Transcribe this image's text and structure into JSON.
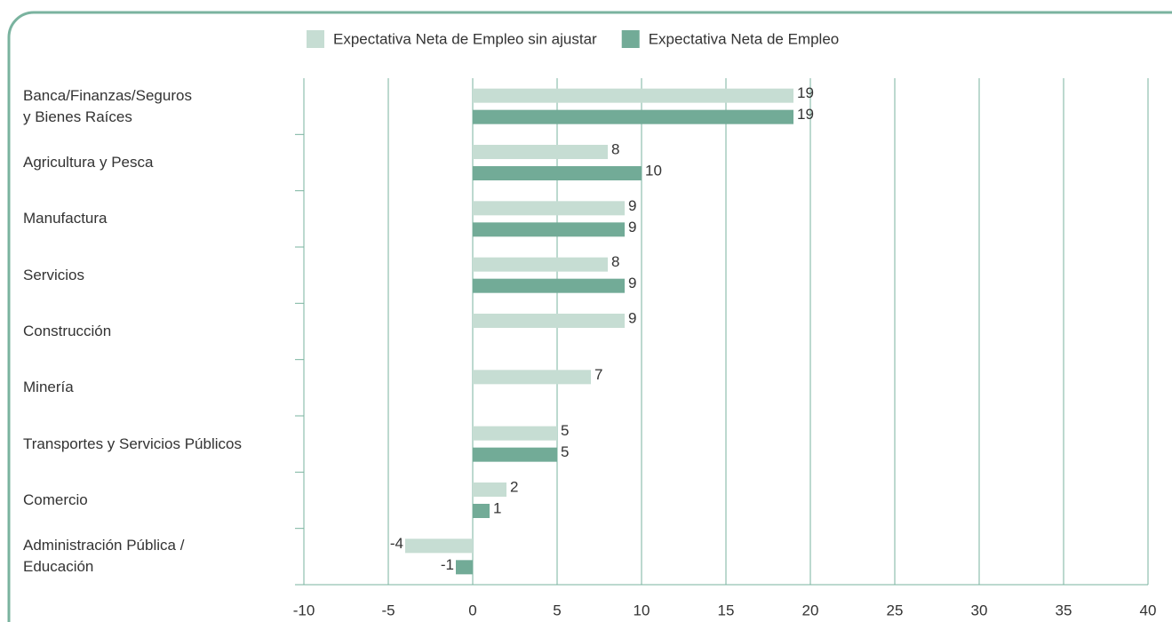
{
  "chart_data": {
    "type": "hbar",
    "categories": [
      "Banca/Finanzas/Seguros\ny Bienes Raíces",
      "Agricultura y Pesca",
      "Manufactura",
      "Servicios",
      "Construcción",
      "Minería",
      "Transportes y Servicios Públicos",
      "Comercio",
      "Administración Pública /\nEducación"
    ],
    "series": [
      {
        "name": "Expectativa Neta de Empleo sin ajustar",
        "color": "#c6ddd3",
        "values": [
          19,
          8,
          9,
          8,
          9,
          7,
          5,
          2,
          -4
        ]
      },
      {
        "name": "Expectativa Neta de Empleo",
        "color": "#72ab97",
        "values": [
          19,
          10,
          9,
          9,
          null,
          null,
          5,
          1,
          -1
        ]
      }
    ],
    "xlim": [
      -10,
      40
    ],
    "xticks": [
      -10,
      -5,
      0,
      5,
      10,
      15,
      20,
      25,
      30,
      35,
      40
    ],
    "grid": true,
    "legend": "top"
  }
}
